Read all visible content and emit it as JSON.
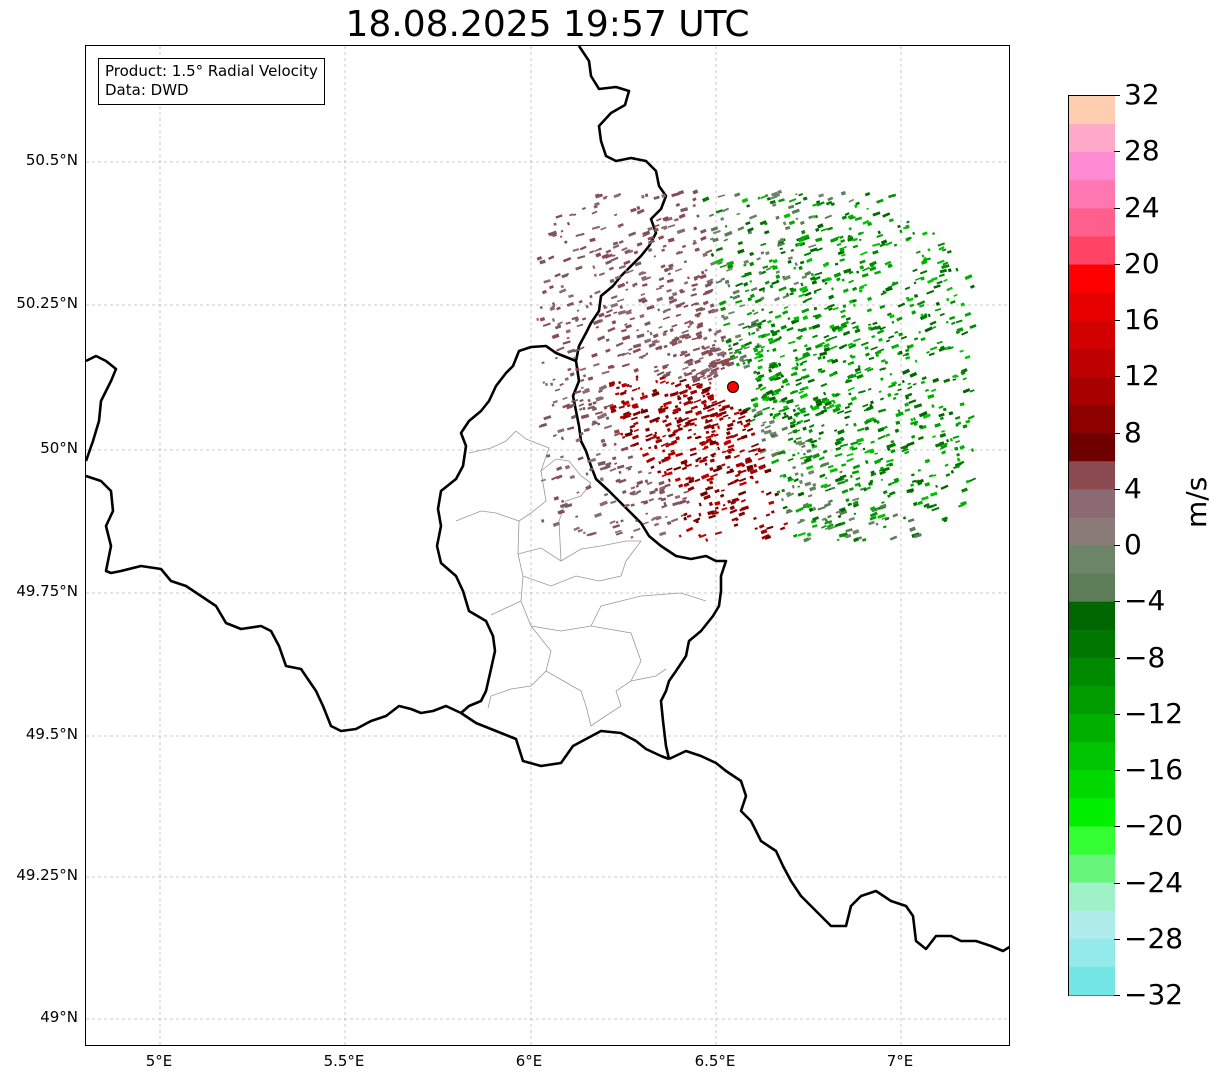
{
  "title": "18.08.2025 19:57 UTC",
  "info_box": {
    "product": "Product: 1.5° Radial Velocity",
    "data": "Data: DWD"
  },
  "axes": {
    "lat_ticks": [
      "50.5°N",
      "50.25°N",
      "50°N",
      "49.75°N",
      "49.5°N",
      "49.25°N",
      "49°N"
    ],
    "lon_ticks": [
      "5°E",
      "5.5°E",
      "6°E",
      "6.5°E",
      "7°E"
    ]
  },
  "colorbar": {
    "label": "m/s",
    "ticks": [
      "32",
      "28",
      "24",
      "20",
      "16",
      "12",
      "8",
      "4",
      "0",
      "−4",
      "−8",
      "−12",
      "−16",
      "−20",
      "−24",
      "−28",
      "−32"
    ],
    "colors_top_to_bottom": [
      "#ffcdb0",
      "#ffa9c8",
      "#ff8ad4",
      "#ff77b0",
      "#ff5f8c",
      "#ff4466",
      "#ff0000",
      "#e60000",
      "#d20000",
      "#bf0000",
      "#a80000",
      "#8d0000",
      "#6e0000",
      "#8a4a50",
      "#8c6a74",
      "#8a7a78",
      "#6c8468",
      "#5d7c58",
      "#006600",
      "#007700",
      "#008a00",
      "#009c00",
      "#00b000",
      "#00c400",
      "#00d800",
      "#00f000",
      "#33ff33",
      "#66f57a",
      "#9ff2c8",
      "#b0ecec",
      "#92ebea",
      "#74e6e6"
    ]
  },
  "radar_site": {
    "marker_color": "#ff0000",
    "lon": 6.55,
    "lat": 50.11
  },
  "colors": {
    "border_line": "#000000",
    "admin_line": "#999999",
    "grid": "#bbbbbb"
  }
}
